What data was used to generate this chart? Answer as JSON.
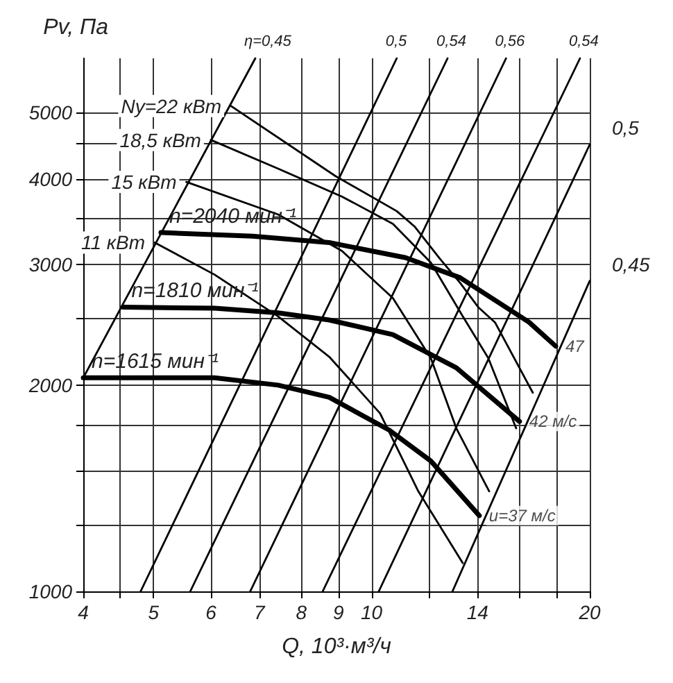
{
  "chart_data": {
    "type": "line",
    "xlabel": "Q, 10³·м³/ч",
    "ylabel": "Pv, Па",
    "log": "xy",
    "grid": true,
    "legend": false,
    "xlim": [
      4,
      20
    ],
    "ylim": [
      1000,
      6000
    ],
    "xticks": [
      4,
      {
        "value": 4.5,
        "label": null
      },
      5,
      6,
      7,
      8,
      9,
      10,
      {
        "value": 12,
        "label": null
      },
      14,
      {
        "value": 16,
        "label": null
      },
      {
        "value": 18,
        "label": null
      },
      20
    ],
    "yticks": [
      1000,
      {
        "value": 1250,
        "label": null
      },
      {
        "value": 1500,
        "label": null
      },
      {
        "value": 1750,
        "label": null
      },
      2000,
      {
        "value": 2500,
        "label": null
      },
      3000,
      {
        "value": 3500,
        "label": null
      },
      4000,
      {
        "value": 4500,
        "label": null
      },
      5000
    ],
    "series": [
      {
        "name": "n=2040 мин⁻¹",
        "color": "#000000",
        "x": [
          5.12,
          6.85,
          8.74,
          11.14,
          13.25,
          16.5,
          17.95
        ],
        "values": [
          3340,
          3300,
          3230,
          3070,
          2870,
          2470,
          2280
        ]
      },
      {
        "name": "n=1810 мин⁻¹",
        "color": "#000000",
        "x": [
          4.54,
          6.07,
          7.43,
          8.74,
          10.7,
          13.09,
          16.0
        ],
        "values": [
          2600,
          2590,
          2550,
          2490,
          2370,
          2120,
          1770
        ]
      },
      {
        "name": "n=1615 мин⁻¹",
        "color": "#000000",
        "x": [
          4,
          6.07,
          7.43,
          8.74,
          10.57,
          12.07,
          14.08
        ],
        "values": [
          2050,
          2050,
          2000,
          1920,
          1720,
          1550,
          1290
        ]
      },
      {
        "name": "Ny=22 кВт",
        "color": "#000000",
        "x": [
          6.4,
          8.91,
          10.83,
          11.46,
          12.42,
          13.25,
          14.03,
          14.8,
          16.69
        ],
        "values": [
          5110,
          4040,
          3590,
          3410,
          3060,
          2820,
          2600,
          2470,
          1950
        ]
      },
      {
        "name": "18,5 кВт",
        "color": "#000000",
        "x": [
          6.0,
          7.43,
          9.1,
          10.7,
          12.07,
          13.36,
          14.49,
          15.83
        ],
        "values": [
          4560,
          4140,
          3770,
          3440,
          3020,
          2520,
          2190,
          1730
        ]
      },
      {
        "name": "15 кВт",
        "color": "#000000",
        "x": [
          5.55,
          7.43,
          9.1,
          10.7,
          12.07,
          13.09,
          14.53
        ],
        "values": [
          3960,
          3550,
          3140,
          2680,
          2190,
          1730,
          1400
        ]
      },
      {
        "name": "11 кВт",
        "color": "#000000",
        "x": [
          5.02,
          6.07,
          7.43,
          8.74,
          10.27,
          11.6,
          13.36
        ],
        "values": [
          3230,
          2900,
          2520,
          2200,
          1820,
          1400,
          1100
        ]
      },
      {
        "name": "η=0,45",
        "color": "#000000",
        "x": [
          4,
          6.91
        ],
        "values": [
          2050,
          6000
        ]
      },
      {
        "name": "0,5",
        "color": "#000000",
        "x": [
          4.8,
          10.83
        ],
        "values": [
          1000,
          6000
        ]
      },
      {
        "name": "0,54",
        "color": "#000000",
        "x": [
          5.62,
          12.73
        ],
        "values": [
          1000,
          6000
        ]
      },
      {
        "name": "0,56",
        "color": "#000000",
        "x": [
          6.8,
          15.33
        ],
        "values": [
          1000,
          6000
        ]
      },
      {
        "name": "0,54",
        "color": "#000000",
        "x": [
          8.56,
          19.39
        ],
        "values": [
          1000,
          6000
        ]
      },
      {
        "name": "0,5",
        "color": "#000000",
        "x": [
          10.23,
          20
        ],
        "values": [
          1000,
          4490
        ]
      },
      {
        "name": "0,45",
        "color": "#000000",
        "x": [
          12.93,
          20
        ],
        "values": [
          1000,
          2840
        ]
      }
    ],
    "annotations": [
      {
        "text": "47",
        "x": 17.95,
        "y": 2280
      },
      {
        "text": "42 м/с",
        "x": 16.0,
        "y": 1770
      },
      {
        "text": "u=37 м/с",
        "x": 14.08,
        "y": 1290
      }
    ]
  }
}
